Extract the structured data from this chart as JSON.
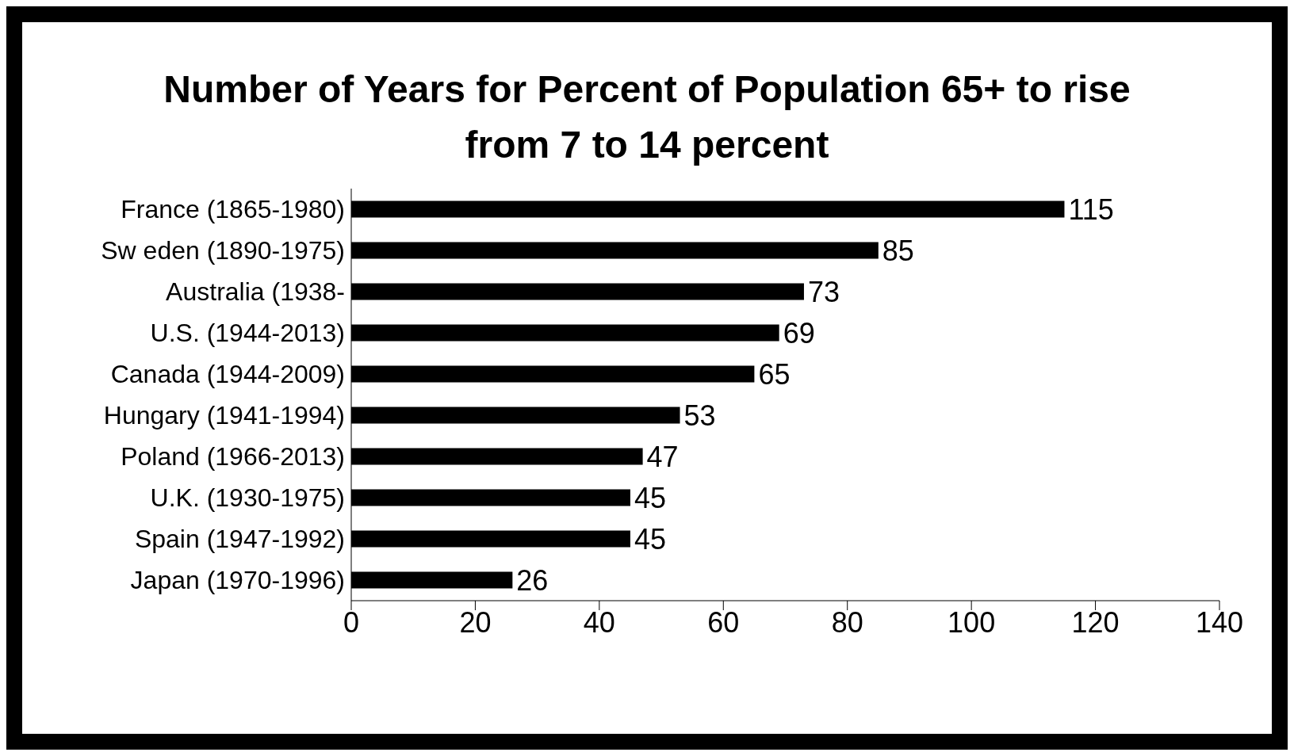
{
  "chart_data": {
    "type": "bar",
    "orientation": "horizontal",
    "title": "Number of Years for Percent of Population 65+ to rise from 7 to 14 percent",
    "categories": [
      "France (1865-1980)",
      "Sw eden (1890-1975)",
      "Australia (1938-",
      "U.S. (1944-2013)",
      "Canada (1944-2009)",
      "Hungary (1941-1994)",
      "Poland (1966-2013)",
      "U.K. (1930-1975)",
      "Spain (1947-1992)",
      "Japan (1970-1996)"
    ],
    "values": [
      115,
      85,
      73,
      69,
      65,
      53,
      47,
      45,
      45,
      26
    ],
    "color": "#000000",
    "xlim": [
      0,
      140
    ],
    "xticks": [
      0,
      20,
      40,
      60,
      80,
      100,
      120,
      140
    ],
    "data_labels": true,
    "grid": false,
    "legend": false
  }
}
